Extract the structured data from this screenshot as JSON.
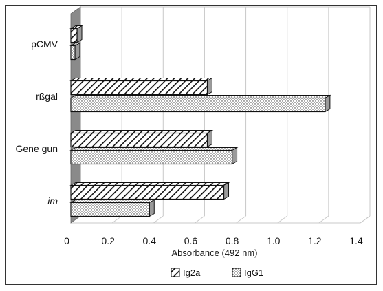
{
  "chart_data": {
    "type": "bar",
    "orientation": "horizontal",
    "three_d": true,
    "categories": [
      "im",
      "Gene gun",
      "rßgal",
      "pCMV"
    ],
    "category_italic": [
      true,
      false,
      false,
      false
    ],
    "series": [
      {
        "name": "IgG1",
        "values": [
          0.38,
          0.78,
          1.23,
          0.02
        ],
        "pattern": "dots"
      },
      {
        "name": "Ig2a",
        "values": [
          0.74,
          0.66,
          0.66,
          0.03
        ],
        "pattern": "hatch"
      }
    ],
    "xlabel": "Absorbance (492 nm)",
    "xlim": [
      0,
      1.4
    ],
    "xticks": [
      0,
      0.2,
      0.4,
      0.6,
      0.8,
      1.0,
      1.2,
      1.4
    ],
    "xtick_labels": [
      "0",
      "0.2",
      "0.4",
      "0.6",
      "0.8",
      "1.0",
      "1.2",
      "1.4"
    ],
    "grid": "vertical",
    "legend": {
      "position": "bottom",
      "items": [
        "Ig2a",
        "IgG1"
      ]
    },
    "colors": {
      "wall": "#8a8a8a",
      "grid": "#c8c8c8",
      "bar_face": "#ffffff",
      "bar_side": "#9a9a9a",
      "outline": "#111111"
    }
  }
}
